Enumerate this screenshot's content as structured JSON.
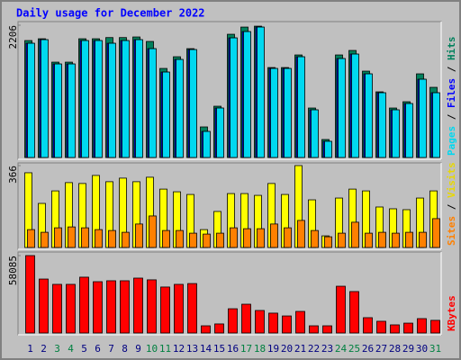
{
  "chart_data": {
    "type": "bar",
    "title": "Daily usage for December 2022",
    "legend_separator": " / ",
    "categories": [
      "1",
      "2",
      "3",
      "4",
      "5",
      "6",
      "7",
      "8",
      "9",
      "10",
      "11",
      "12",
      "13",
      "14",
      "15",
      "16",
      "17",
      "18",
      "19",
      "20",
      "21",
      "22",
      "23",
      "24",
      "25",
      "26",
      "27",
      "28",
      "29",
      "30",
      "31"
    ],
    "category_colors": [
      "#000080",
      "#000080",
      "#008040",
      "#008040",
      "#000080",
      "#000080",
      "#000080",
      "#000080",
      "#000080",
      "#008040",
      "#008040",
      "#000080",
      "#000080",
      "#000080",
      "#000080",
      "#000080",
      "#008040",
      "#008040",
      "#000080",
      "#000080",
      "#000080",
      "#000080",
      "#000080",
      "#008040",
      "#008040",
      "#000080",
      "#000080",
      "#000080",
      "#000080",
      "#000080",
      "#008040"
    ],
    "panels": [
      {
        "ylim": [
          0,
          2206
        ],
        "yticks": [
          2206
        ],
        "series": [
          {
            "name": "Hits",
            "color": "#00805c",
            "values": [
              1950,
              1980,
              1590,
              1590,
              1980,
              1980,
              2000,
              2000,
              2010,
              1935,
              1485,
              1680,
              1815,
              510,
              855,
              2055,
              2175,
              2190,
              1500,
              1500,
              1710,
              825,
              300,
              1710,
              1785,
              1440,
              1095,
              825,
              930,
              1395,
              1170
            ]
          },
          {
            "name": "Files",
            "color": "#0000ff",
            "values": [
              1905,
              1965,
              1560,
              1560,
              1950,
              1950,
              1905,
              1950,
              1965,
              1815,
              1425,
              1635,
              1800,
              435,
              825,
              1995,
              2100,
              2175,
              1485,
              1485,
              1680,
              795,
              270,
              1650,
              1725,
              1395,
              1080,
              795,
              900,
              1305,
              1080
            ]
          },
          {
            "name": "Pages",
            "color": "#00d8f0",
            "values": [
              1905,
              1965,
              1560,
              1560,
              1950,
              1950,
              1905,
              1950,
              1965,
              1815,
              1425,
              1635,
              1800,
              435,
              825,
              1995,
              2100,
              2175,
              1485,
              1485,
              1680,
              795,
              270,
              1650,
              1725,
              1395,
              1080,
              795,
              900,
              1305,
              1080
            ]
          }
        ],
        "legend_order": [
          2,
          1,
          0
        ]
      },
      {
        "ylim": [
          0,
          366
        ],
        "yticks": [
          366
        ],
        "series": [
          {
            "name": "Visits",
            "color": "#ffff00",
            "values": [
              334,
              197,
              253,
              290,
              286,
              322,
              294,
              310,
              294,
              314,
              261,
              249,
              237,
              80,
              161,
              241,
              241,
              233,
              286,
              237,
              366,
              213,
              52,
              221,
              261,
              253,
              181,
              173,
              169,
              221,
              253
            ]
          },
          {
            "name": "Sites",
            "color": "#ff8000",
            "values": [
              80,
              68,
              88,
              92,
              88,
              80,
              76,
              68,
              105,
              141,
              76,
              76,
              64,
              60,
              64,
              88,
              84,
              84,
              105,
              88,
              121,
              76,
              48,
              64,
              113,
              64,
              68,
              64,
              68,
              68,
              129
            ]
          }
        ],
        "legend_order": [
          1,
          0
        ]
      },
      {
        "ylim": [
          0,
          58085
        ],
        "yticks": [
          58085
        ],
        "series": [
          {
            "name": "KBytes",
            "color": "#ff0000",
            "values": [
              58085,
              40500,
              36500,
              36500,
              41900,
              38500,
              39200,
              39200,
              41200,
              39900,
              34500,
              36500,
              37100,
              5400,
              6800,
              18200,
              21600,
              16900,
              14900,
              12800,
              16200,
              5400,
              5400,
              35100,
              31100,
              11500,
              8800,
              6100,
              7400,
              10800,
              9500
            ]
          }
        ],
        "legend_order": [
          0
        ]
      }
    ]
  }
}
